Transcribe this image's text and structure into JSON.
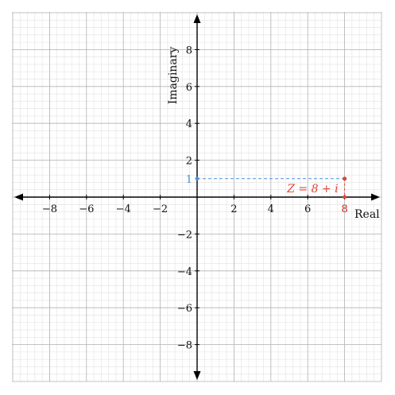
{
  "chart_data": {
    "type": "scatter",
    "x_axis": {
      "label": "Real",
      "range": [
        -10,
        10
      ],
      "ticks": [
        -8,
        -6,
        -4,
        -2,
        2,
        4,
        6,
        8
      ],
      "tick_labels": [
        "−8",
        "−6",
        "−4",
        "−2",
        "2",
        "4",
        "6",
        "8"
      ],
      "minor_step": 0.4
    },
    "y_axis": {
      "label": "Imaginary",
      "range": [
        -10,
        10
      ],
      "ticks": [
        -8,
        -6,
        -4,
        -2,
        2,
        4,
        6,
        8
      ],
      "tick_labels": [
        "−8",
        "−6",
        "−4",
        "−2",
        "2",
        "4",
        "6",
        "8"
      ],
      "minor_step": 0.4
    },
    "grid": true,
    "point": {
      "label": "Z = 8 + i",
      "real": 8,
      "imag": 1,
      "real_label": "8",
      "imag_label": "1"
    }
  },
  "colors": {
    "point": "#e0453a",
    "projection_imag": "#4a90e2",
    "axis": "#000000",
    "grid_major": "#b4b4b4",
    "grid_minor": "#e2e2e2"
  }
}
